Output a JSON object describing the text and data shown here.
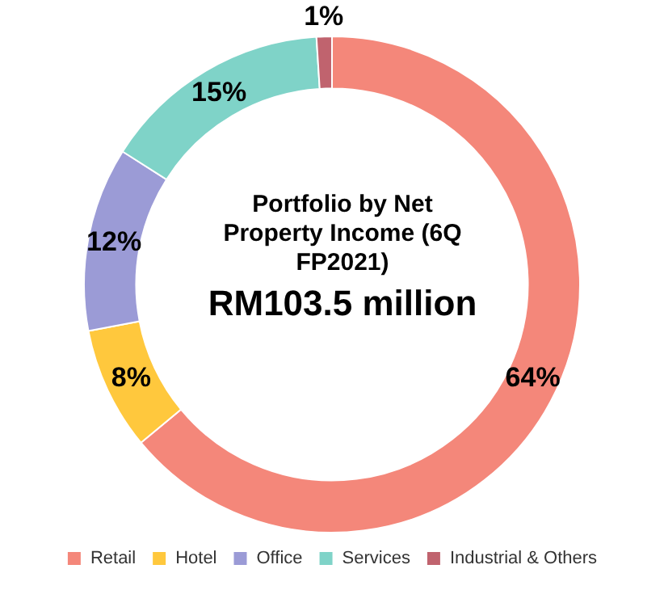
{
  "chart_data": {
    "type": "donut",
    "title": "Portfolio by Net Property Income (6Q FP2021)",
    "subtitle": "RM103.5 million",
    "categories": [
      "Retail",
      "Hotel",
      "Office",
      "Services",
      "Industrial & Others"
    ],
    "values": [
      64,
      8,
      12,
      15,
      1
    ],
    "colors": [
      "#f4877a",
      "#ffc83d",
      "#9b9bd6",
      "#7fd3c8",
      "#c0636e"
    ],
    "value_labels": [
      "64%",
      "8%",
      "12%",
      "15%",
      "1%"
    ],
    "legend": "bottom"
  }
}
